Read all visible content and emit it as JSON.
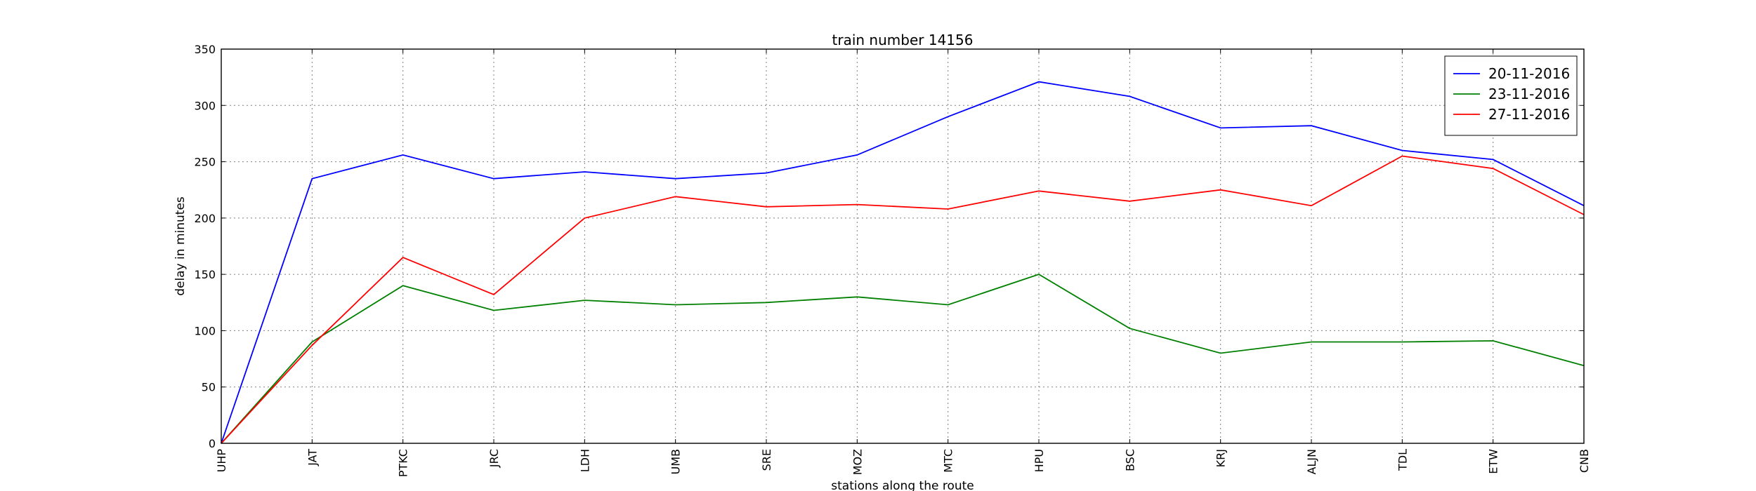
{
  "chart_data": {
    "type": "line",
    "title": "train number 14156",
    "xlabel": "stations along the route",
    "ylabel": "delay in minutes",
    "categories": [
      "UHP",
      "JAT",
      "PTKC",
      "JRC",
      "LDH",
      "UMB",
      "SRE",
      "MOZ",
      "MTC",
      "HPU",
      "BSC",
      "KRJ",
      "ALJN",
      "TDL",
      "ETW",
      "CNB"
    ],
    "ylim": [
      0,
      350
    ],
    "yticks": [
      0,
      50,
      100,
      150,
      200,
      250,
      300,
      350
    ],
    "grid": true,
    "legend_position": "top-right",
    "series": [
      {
        "name": "20-11-2016",
        "color": "#0000ff",
        "values": [
          0,
          235,
          256,
          235,
          241,
          235,
          240,
          256,
          290,
          321,
          308,
          280,
          282,
          260,
          252,
          211
        ]
      },
      {
        "name": "23-11-2016",
        "color": "#008000",
        "values": [
          0,
          90,
          140,
          118,
          127,
          123,
          125,
          130,
          123,
          150,
          102,
          80,
          90,
          90,
          91,
          69
        ]
      },
      {
        "name": "27-11-2016",
        "color": "#ff0000",
        "values": [
          0,
          87,
          165,
          132,
          200,
          219,
          210,
          212,
          208,
          224,
          215,
          225,
          211,
          255,
          244,
          203
        ]
      }
    ]
  }
}
